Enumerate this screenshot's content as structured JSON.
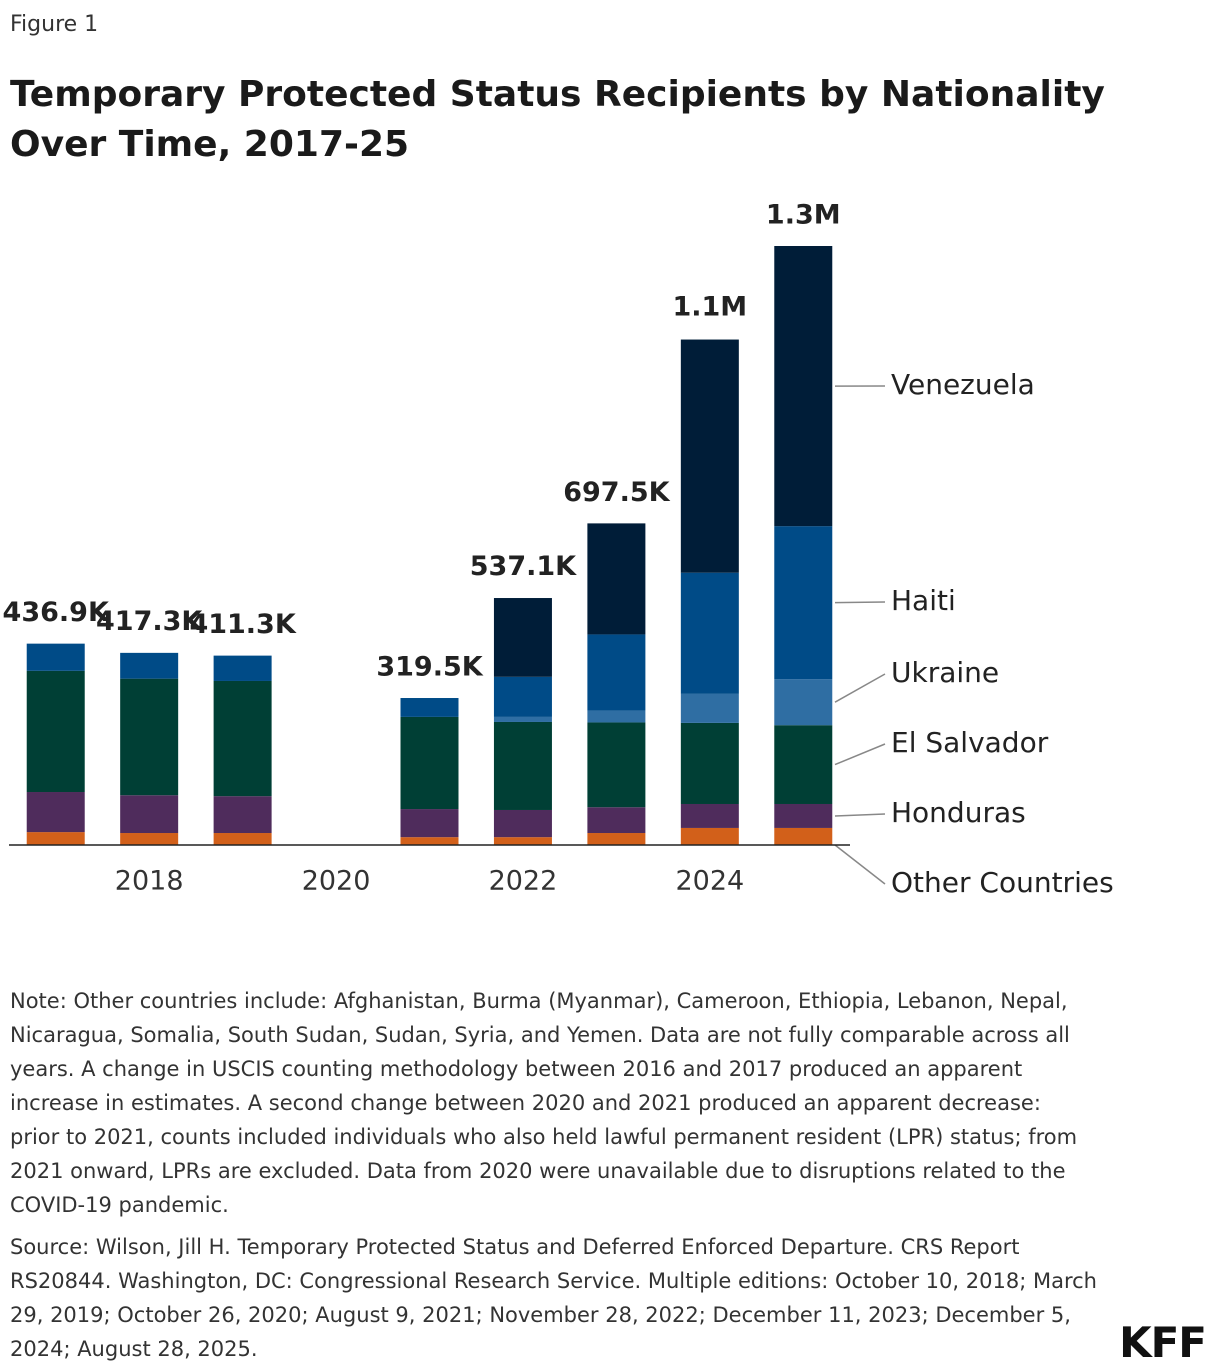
{
  "chart_data": {
    "type": "stacked-bar",
    "figure_label": "Figure 1",
    "title": "Temporary Protected Status Recipients by Nationality Over Time, 2017-25",
    "x": [
      2017,
      2018,
      2019,
      2020,
      2021,
      2022,
      2023,
      2024,
      2025
    ],
    "xlim": [
      2016.5,
      2025.5
    ],
    "xticks": [
      2018,
      2020,
      2022,
      2024
    ],
    "series": [
      {
        "name": "Other Countries",
        "color": "#d2601a",
        "values": [
          28000,
          26000,
          26000,
          null,
          17000,
          17000,
          26000,
          37000,
          37000
        ]
      },
      {
        "name": "Honduras",
        "color": "#4f2c5c",
        "values": [
          87000,
          82000,
          80000,
          null,
          61000,
          59000,
          56000,
          52000,
          52000
        ]
      },
      {
        "name": "El Salvador",
        "color": "#003f35",
        "values": [
          263000,
          253000,
          250000,
          null,
          200000,
          191000,
          184000,
          176000,
          171000
        ]
      },
      {
        "name": "Ukraine",
        "color": "#2f6ea3",
        "values": [
          0,
          0,
          0,
          null,
          0,
          11000,
          26000,
          63000,
          100000
        ]
      },
      {
        "name": "Haiti",
        "color": "#004b87",
        "values": [
          59000,
          56000,
          55000,
          null,
          41000,
          87000,
          165000,
          263000,
          332000
        ]
      },
      {
        "name": "Venezuela",
        "color": "#001d38",
        "values": [
          0,
          0,
          0,
          null,
          0,
          171000,
          241000,
          506000,
          608000
        ]
      }
    ],
    "totals": [
      436900,
      417300,
      411300,
      null,
      319500,
      537100,
      697500,
      1100000,
      1300000
    ],
    "total_labels": [
      "436.9K",
      "417.3K",
      "411.3K",
      null,
      "319.5K",
      "537.1K",
      "697.5K",
      "1.1M",
      "1.3M"
    ],
    "note": "Note: Other countries include: Afghanistan, Burma (Myanmar), Cameroon, Ethiopia, Lebanon, Nepal, Nicaragua, Somalia, South Sudan, Sudan, Syria, and Yemen. Data are not fully comparable across all years. A change in USCIS counting methodology between 2016 and 2017 produced an apparent increase in estimates. A second change between 2020 and 2021 produced an apparent decrease: prior to 2021, counts included individuals who also held lawful permanent resident (LPR) status; from 2021 onward, LPRs are excluded. Data from 2020 were unavailable due to disruptions related to the COVID-19 pandemic.",
    "source": "Source: Wilson, Jill H. Temporary Protected Status and Deferred Enforced Departure. CRS Report RS20844. Washington, DC: Congressional Research Service. Multiple editions: October 10, 2018; March 29, 2019; October 26, 2020; August 9, 2021; November 28, 2022; December 11, 2023; December 5, 2024; August 28, 2025.",
    "logo": "KFF"
  }
}
